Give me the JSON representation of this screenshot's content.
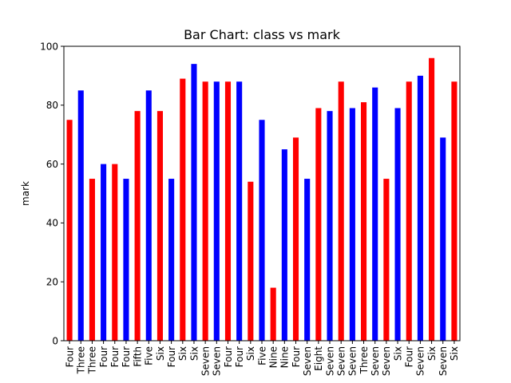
{
  "chart_data": {
    "type": "bar",
    "title": "Bar Chart: class vs mark",
    "xlabel": "",
    "ylabel": "mark",
    "ylim": [
      0,
      100
    ],
    "yticks": [
      0,
      20,
      40,
      60,
      80,
      100
    ],
    "grid": false,
    "colors": {
      "red": "#ff0000",
      "blue": "#0000ff"
    },
    "categories": [
      "Four",
      "Three",
      "Three",
      "Four",
      "Four",
      "Four",
      "Fifth",
      "Five",
      "Six",
      "Four",
      "Six",
      "Six",
      "Seven",
      "Seven",
      "Four",
      "Four",
      "Six",
      "Five",
      "Nine",
      "Nine",
      "Four",
      "Seven",
      "Eight",
      "Seven",
      "Seven",
      "Seven",
      "Three",
      "Seven",
      "Seven",
      "Six",
      "Four",
      "Seven",
      "Six",
      "Seven",
      "Six"
    ],
    "values": [
      75,
      85,
      55,
      60,
      60,
      55,
      78,
      85,
      78,
      55,
      89,
      94,
      88,
      88,
      88,
      88,
      54,
      75,
      18,
      65,
      69,
      55,
      79,
      78,
      88,
      79,
      81,
      86,
      55,
      79,
      88,
      90,
      96,
      69,
      88
    ],
    "bar_colors": [
      "red",
      "blue",
      "red",
      "blue",
      "red",
      "blue",
      "red",
      "blue",
      "red",
      "blue",
      "red",
      "blue",
      "red",
      "blue",
      "red",
      "blue",
      "red",
      "blue",
      "red",
      "blue",
      "red",
      "blue",
      "red",
      "blue",
      "red",
      "blue",
      "red",
      "blue",
      "red",
      "blue",
      "red",
      "blue",
      "red",
      "blue",
      "red"
    ]
  }
}
